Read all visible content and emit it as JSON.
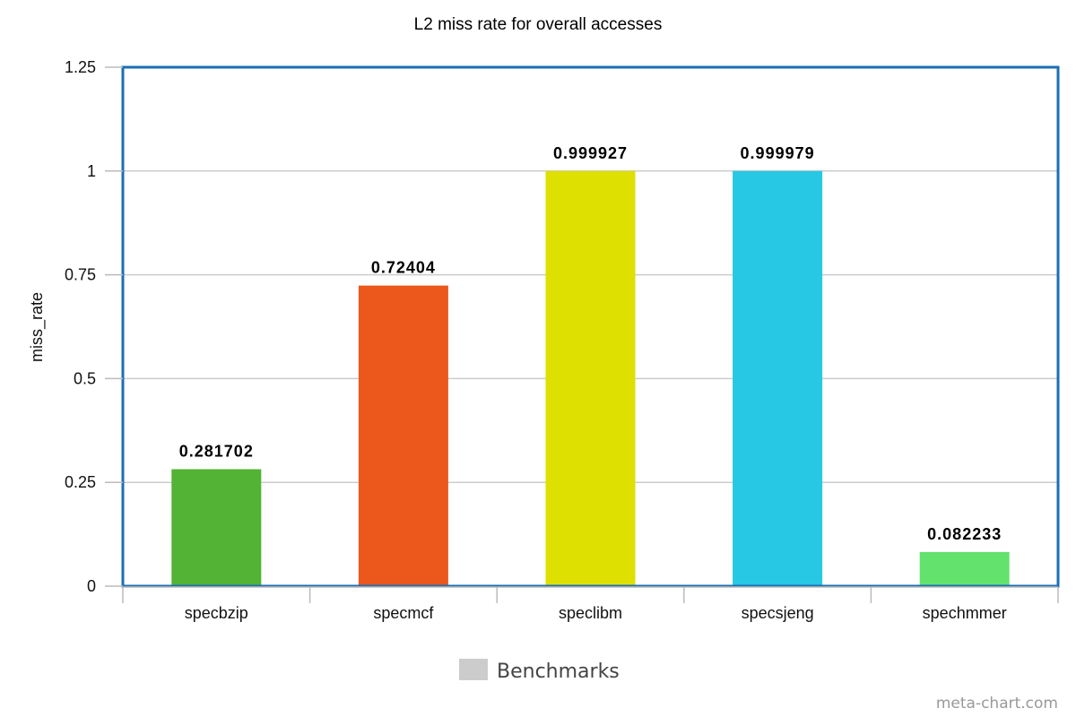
{
  "chart_data": {
    "type": "bar",
    "title": "L2 miss rate for overall accesses",
    "ylabel": "miss_rate",
    "xlabel": "",
    "categories": [
      "specbzip",
      "specmcf",
      "speclibm",
      "specsjeng",
      "spechmmer"
    ],
    "series": [
      {
        "name": "Benchmarks",
        "values": [
          0.281702,
          0.72404,
          0.999927,
          0.999979,
          0.082233
        ],
        "value_labels": [
          "0.281702",
          "0.72404",
          "0.999927",
          "0.999979",
          "0.082233"
        ],
        "colors": [
          "#52b334",
          "#ec571c",
          "#dde000",
          "#26c8e4",
          "#63e26e"
        ]
      }
    ],
    "ylim": [
      0,
      1.25
    ],
    "yticks": [
      0,
      0.25,
      0.5,
      0.75,
      1,
      1.25
    ],
    "ytick_labels": [
      "0",
      "0.25",
      "0.5",
      "0.75",
      "1",
      "1.25"
    ],
    "grid": true,
    "legend": {
      "position": "bottom-center",
      "label": "Benchmarks",
      "swatch_color": "#cccccc"
    },
    "frame_color": "#1a6eb5",
    "grid_color": "#cccccc"
  },
  "watermark": "meta-chart.com"
}
